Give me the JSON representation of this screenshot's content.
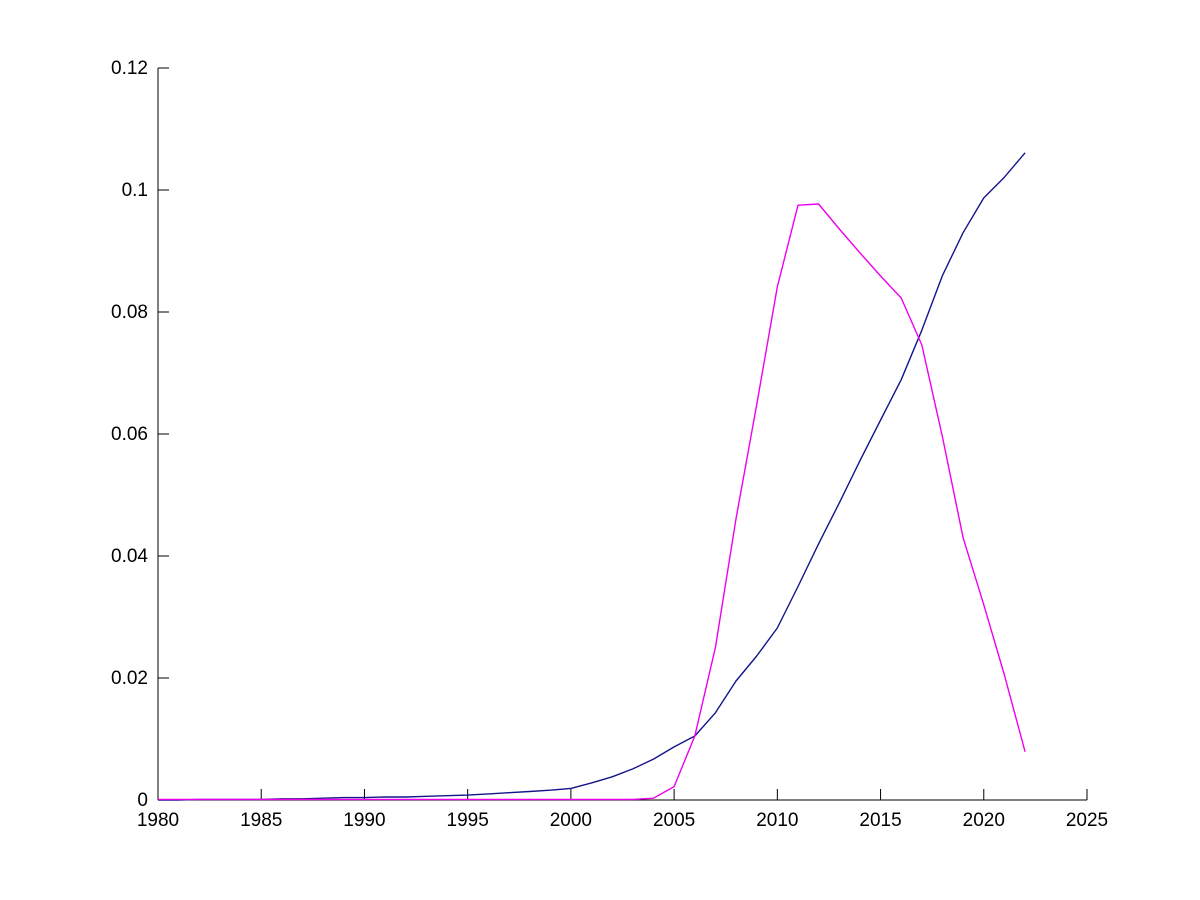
{
  "figure": {
    "background_color": "#ffffff",
    "axis_color": "#000000",
    "text_color": "#000000"
  },
  "chart_data": {
    "type": "line",
    "title": "",
    "xlabel": "",
    "ylabel": "",
    "grid": false,
    "legend": false,
    "xlim": [
      1980,
      2025
    ],
    "ylim": [
      0,
      0.12
    ],
    "x_ticks": [
      1980,
      1985,
      1990,
      1995,
      2000,
      2005,
      2010,
      2015,
      2020,
      2025
    ],
    "x_tick_labels": [
      "1980",
      "1985",
      "1990",
      "1995",
      "2000",
      "2005",
      "2010",
      "2015",
      "2020",
      "2025"
    ],
    "y_ticks": [
      0,
      0.02,
      0.04,
      0.06,
      0.08,
      0.1,
      0.12
    ],
    "y_tick_labels": [
      "0",
      "0.02",
      "0.04",
      "0.06",
      "0.08",
      "0.1",
      "0.12"
    ],
    "x": [
      1980,
      1981,
      1982,
      1983,
      1984,
      1985,
      1986,
      1987,
      1988,
      1989,
      1990,
      1991,
      1992,
      1993,
      1994,
      1995,
      1996,
      1997,
      1998,
      1999,
      2000,
      2001,
      2002,
      2003,
      2004,
      2005,
      2006,
      2007,
      2008,
      2009,
      2010,
      2011,
      2012,
      2013,
      2014,
      2015,
      2016,
      2017,
      2018,
      2019,
      2020,
      2021,
      2022
    ],
    "series": [
      {
        "name": "blue-line",
        "color": "#14148C",
        "values": [
          0.0,
          0.0,
          0.0001,
          0.0001,
          0.0001,
          0.0001,
          0.0002,
          0.0002,
          0.0003,
          0.0004,
          0.0004,
          0.0005,
          0.0005,
          0.0006,
          0.0007,
          0.0008,
          0.001,
          0.0012,
          0.0014,
          0.0016,
          0.0019,
          0.0028,
          0.0038,
          0.0051,
          0.0067,
          0.0087,
          0.0105,
          0.0143,
          0.0195,
          0.0236,
          0.0282,
          0.035,
          0.042,
          0.0487,
          0.0556,
          0.0623,
          0.0689,
          0.077,
          0.086,
          0.093,
          0.0987,
          0.1021,
          0.1061
        ]
      },
      {
        "name": "magenta-line",
        "color": "#EE00EE",
        "values": [
          0.0001,
          0.0001,
          0.0001,
          0.0001,
          0.0001,
          0.0001,
          0.0001,
          0.0001,
          0.0001,
          0.0001,
          0.0001,
          0.0001,
          0.0001,
          0.0001,
          0.0001,
          0.0001,
          0.0001,
          0.0001,
          0.0001,
          0.0001,
          0.0001,
          0.0001,
          0.0001,
          0.0001,
          0.0003,
          0.0022,
          0.0105,
          0.025,
          0.0461,
          0.0648,
          0.0841,
          0.0975,
          0.0977,
          0.0936,
          0.0897,
          0.0859,
          0.0823,
          0.0746,
          0.0595,
          0.043,
          0.032,
          0.0205,
          0.0079
        ]
      }
    ]
  }
}
